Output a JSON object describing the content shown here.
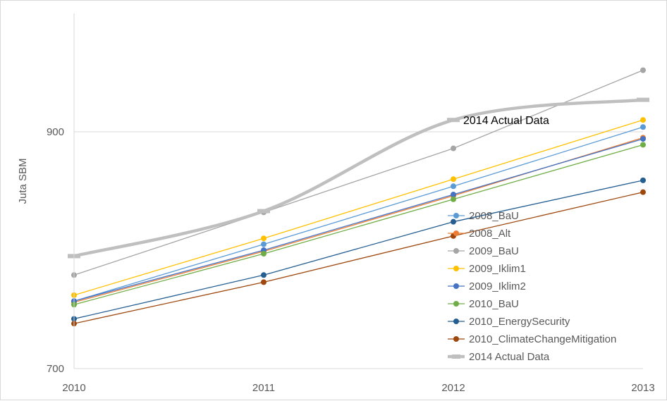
{
  "chart_data": {
    "type": "line",
    "ylabel": "Juta SBM",
    "xlabel": "",
    "x": [
      2010,
      2011,
      2012,
      2013
    ],
    "x_tick_labels": [
      "2010",
      "2011",
      "2012",
      "2013"
    ],
    "y_tick_labels": [
      "700",
      "900"
    ],
    "y_ticks": [
      700,
      900
    ],
    "ylim": [
      700,
      1000
    ],
    "grid": true,
    "legend_position": "bottom-right",
    "annotation": {
      "text": "2014 Actual Data",
      "x": 2012,
      "y": 910
    },
    "series": [
      {
        "name": "2008_BaU",
        "color": "#5B9BD5",
        "values": [
          757,
          805,
          854,
          904
        ]
      },
      {
        "name": "2008_Alt",
        "color": "#ED7D31",
        "values": [
          756,
          799,
          846,
          895
        ]
      },
      {
        "name": "2009_BaU",
        "color": "#A5A5A5",
        "values": [
          779,
          832,
          886,
          952
        ]
      },
      {
        "name": "2009_Iklim1",
        "color": "#FFC000",
        "values": [
          762,
          810,
          860,
          910
        ]
      },
      {
        "name": "2009_Iklim2",
        "color": "#4472C4",
        "values": [
          757,
          800,
          847,
          894
        ]
      },
      {
        "name": "2010_BaU",
        "color": "#70AD47",
        "values": [
          754,
          797,
          843,
          889
        ]
      },
      {
        "name": "2010_EnergySecurity",
        "color": "#255E91",
        "values": [
          742,
          779,
          824,
          859
        ]
      },
      {
        "name": "2010_ClimateChangeMitigation",
        "color": "#9E480E",
        "values": [
          738,
          773,
          812,
          849
        ]
      },
      {
        "name": "2014 Actual Data",
        "color": "#BFBFBF",
        "values": [
          795,
          833,
          910,
          927
        ],
        "smooth": true
      }
    ]
  }
}
